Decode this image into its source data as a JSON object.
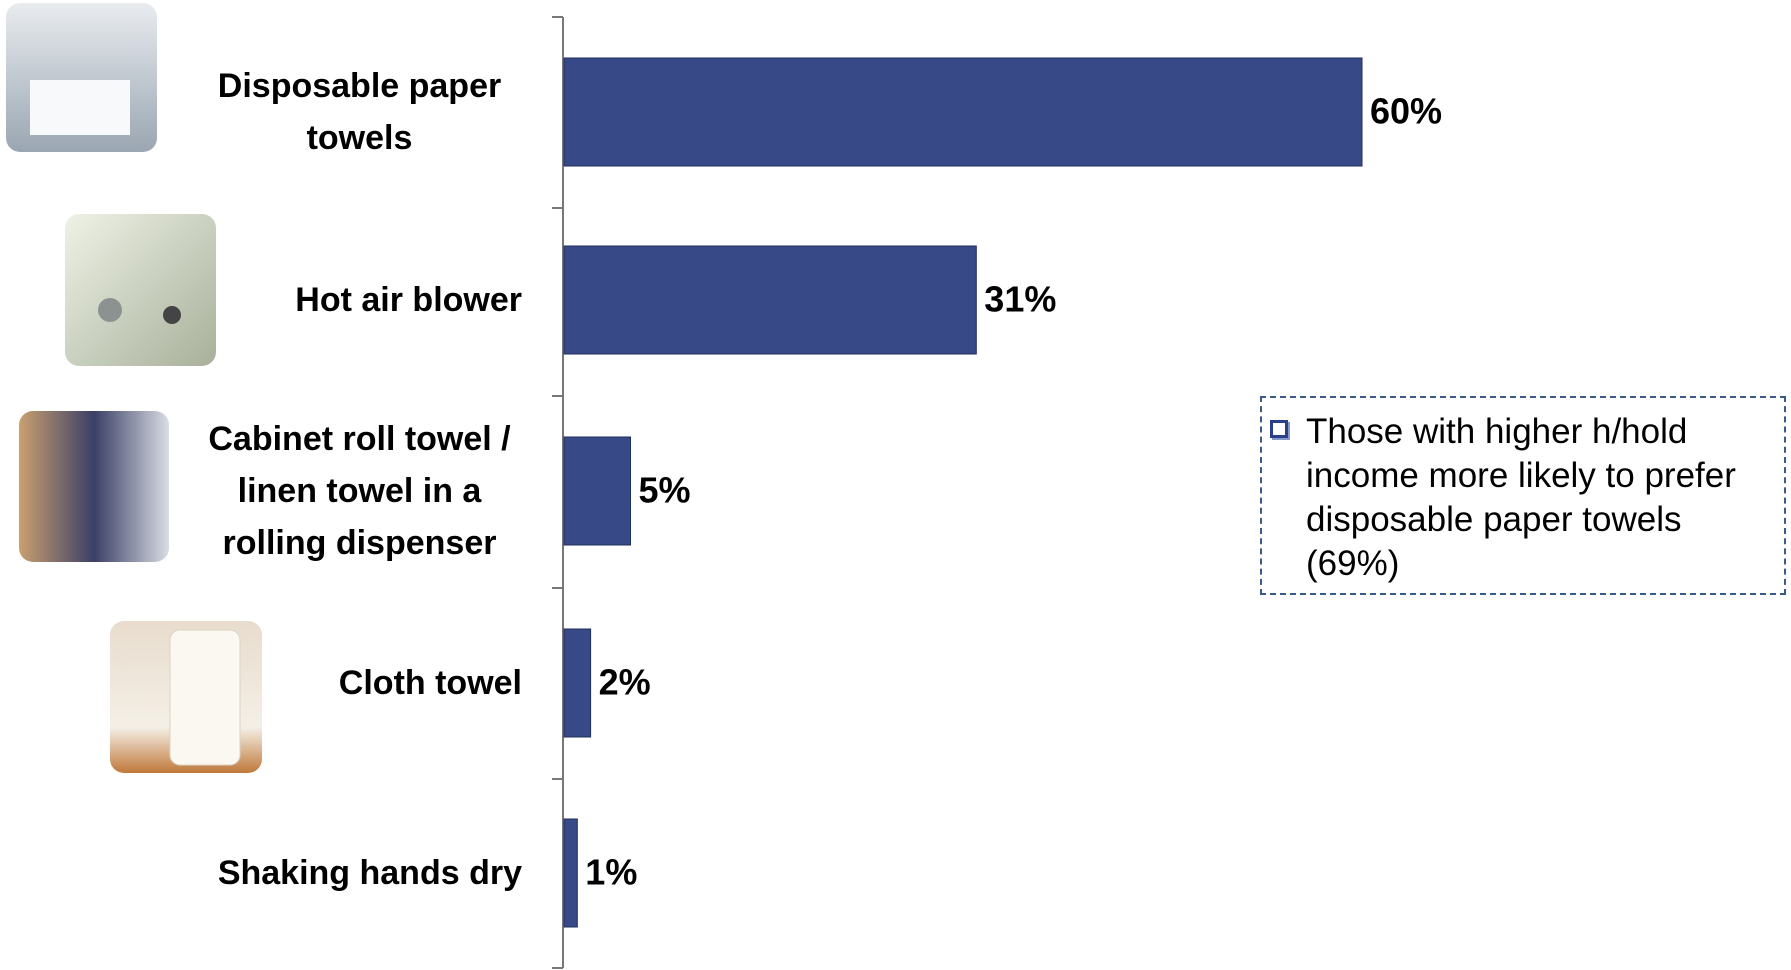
{
  "chart_data": {
    "type": "bar",
    "orientation": "horizontal",
    "categories": [
      "Disposable paper towels",
      "Hot air blower",
      "Cabinet roll towel / linen towel in a rolling dispenser",
      "Cloth towel",
      "Shaking hands dry"
    ],
    "values": [
      60,
      31,
      5,
      2,
      1
    ],
    "value_labels": [
      "60%",
      "31%",
      "5%",
      "2%",
      "1%"
    ],
    "color": "#374a87",
    "xlim": [
      0,
      60
    ],
    "annotation": "Those with higher h/hold income more likely to prefer disposable paper towels (69%)"
  }
}
